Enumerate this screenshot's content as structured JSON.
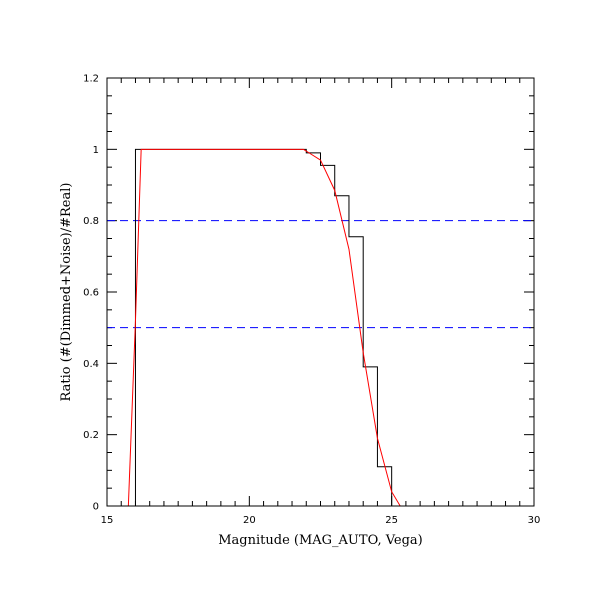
{
  "chart_data": {
    "type": "line",
    "title": "",
    "xlabel": "Magnitude (MAG_AUTO, Vega)",
    "ylabel": "Ratio (#(Dimmed+Noise)/#Real)",
    "xlim": [
      15,
      30
    ],
    "ylim": [
      0,
      1.2
    ],
    "xticks": [
      15,
      20,
      25,
      30
    ],
    "yticks": [
      0,
      0.2,
      0.4,
      0.6,
      0.8,
      1,
      1.2
    ],
    "xtick_labels": [
      "15",
      "20",
      "25",
      "30"
    ],
    "ytick_labels": [
      "0",
      "0.2",
      "0.4",
      "0.6",
      "0.8",
      "1",
      "1.2"
    ],
    "grid": false,
    "legend": "none",
    "series": [
      {
        "style": "histogram-step",
        "color": "#000000",
        "bin_edges": [
          15.5,
          16.0,
          16.5,
          17.0,
          17.5,
          18.0,
          18.5,
          19.0,
          19.5,
          20.0,
          20.5,
          21.0,
          21.5,
          22.0,
          22.5,
          23.0,
          23.5,
          24.0,
          24.5,
          25.0,
          25.5,
          26.0,
          26.5,
          27.0,
          27.5,
          28.0,
          28.5,
          29.0,
          29.5,
          30.0
        ],
        "values": [
          0,
          1.0,
          1.0,
          1.0,
          1.0,
          1.0,
          1.0,
          1.0,
          1.0,
          1.0,
          1.0,
          1.0,
          1.0,
          0.99,
          0.955,
          0.87,
          0.755,
          0.39,
          0.11,
          0,
          0,
          0,
          0,
          0,
          0,
          0,
          0,
          0,
          0
        ]
      },
      {
        "style": "fit-curve",
        "color": "#ff0000",
        "x": [
          15.75,
          16.0,
          16.2,
          17.0,
          18.0,
          19.0,
          20.0,
          21.0,
          21.9,
          22.0,
          22.5,
          23.0,
          23.5,
          24.0,
          24.5,
          25.0,
          25.3,
          26.0,
          27.0,
          28.0,
          29.0,
          30.0
        ],
        "y": [
          0,
          0.52,
          1.0,
          1.0,
          1.0,
          1.0,
          1.0,
          1.0,
          1.0,
          0.995,
          0.97,
          0.885,
          0.72,
          0.43,
          0.19,
          0.04,
          0,
          0,
          0,
          0,
          0,
          0
        ]
      }
    ],
    "reference_lines": [
      {
        "axis": "y",
        "value": 0.8,
        "color": "#0000ff",
        "style": "dashed"
      },
      {
        "axis": "y",
        "value": 0.5,
        "color": "#0000ff",
        "style": "dashed"
      }
    ]
  }
}
